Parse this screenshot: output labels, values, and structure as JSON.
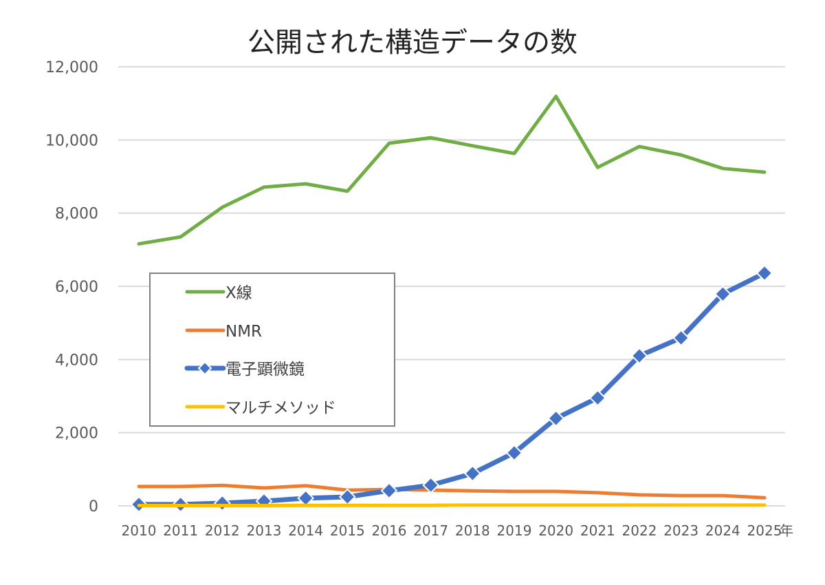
{
  "chart_data": {
    "type": "line",
    "title": "公開された構造データの数",
    "xlabel": "年",
    "ylabel": "",
    "categories": [
      "2010",
      "2011",
      "2012",
      "2013",
      "2014",
      "2015",
      "2016",
      "2017",
      "2018",
      "2019",
      "2020",
      "2021",
      "2022",
      "2023",
      "2024",
      "2025"
    ],
    "ylim": [
      0,
      12000
    ],
    "yticks": [
      "0",
      "2,000",
      "4,000",
      "6,000",
      "8,000",
      "10,000",
      "12,000"
    ],
    "ytick_values": [
      0,
      2000,
      4000,
      6000,
      8000,
      10000,
      12000
    ],
    "grid": true,
    "legend_position": "center-left",
    "series": [
      {
        "name": "X線",
        "color": "#70AD47",
        "marker": "none",
        "values": [
          7160,
          7350,
          8160,
          8710,
          8800,
          8600,
          9910,
          10060,
          9840,
          9630,
          11190,
          9250,
          9820,
          9590,
          9220,
          9120
        ]
      },
      {
        "name": "NMR",
        "color": "#ED7D31",
        "marker": "none",
        "values": [
          530,
          530,
          560,
          490,
          550,
          430,
          450,
          430,
          410,
          395,
          395,
          360,
          300,
          280,
          280,
          220
        ]
      },
      {
        "name": "電子顕微鏡",
        "color": "#4472C4",
        "marker": "diamond",
        "values": [
          40,
          40,
          75,
          130,
          210,
          245,
          415,
          565,
          885,
          1450,
          2390,
          2950,
          4100,
          4590,
          5790,
          6360
        ]
      },
      {
        "name": "マルチメソッド",
        "color": "#FFC000",
        "marker": "none",
        "values": [
          10,
          10,
          10,
          10,
          15,
          15,
          15,
          15,
          20,
          20,
          20,
          20,
          20,
          20,
          20,
          20
        ]
      }
    ]
  }
}
